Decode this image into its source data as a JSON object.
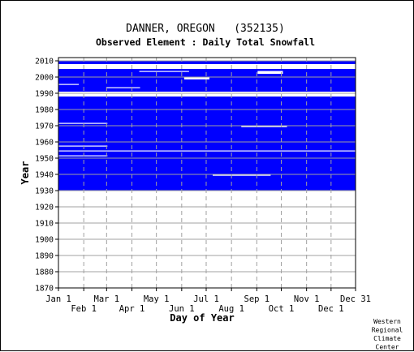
{
  "chart_data": {
    "type": "heatmap",
    "title": "DANNER, OREGON   (352135)",
    "subtitle": "Observed Element : Daily Total Snowfall",
    "xlabel": "Day of Year",
    "ylabel": "Year",
    "x_ticks_top_row": [
      "Jan 1",
      "Mar 1",
      "May 1",
      "Jul 1",
      "Sep 1",
      "Nov 1",
      "Dec 31"
    ],
    "x_ticks_bottom_row": [
      "Feb 1",
      "Apr 1",
      "Jun 1",
      "Aug 1",
      "Oct 1",
      "Dec 1"
    ],
    "y_ticks": [
      "2010",
      "2000",
      "1990",
      "1980",
      "1970",
      "1960",
      "1950",
      "1940",
      "1930",
      "1920",
      "1910",
      "1900",
      "1890",
      "1880",
      "1870"
    ],
    "ylim": [
      1870,
      2012
    ],
    "xlim_days": [
      1,
      365
    ],
    "grid": true,
    "series_color": "#0000ff",
    "grid_color": "#a0a0a0",
    "series": [
      {
        "observed_periods": [
          {
            "years": [
              1930,
              1987
            ],
            "days": [
              1,
              365
            ]
          },
          {
            "years": [
              1991,
              2004
            ],
            "days": [
              1,
              365
            ]
          },
          {
            "years": [
              2008,
              2009
            ],
            "days": [
              1,
              365
            ]
          }
        ],
        "missing_periods": [
          {
            "years": [
              1954,
              1954
            ],
            "days": [
              1,
              365
            ]
          },
          {
            "years": [
              1957,
              1957
            ],
            "days": [
              1,
              60
            ]
          },
          {
            "years": [
              1951,
              1951
            ],
            "days": [
              1,
              60
            ]
          },
          {
            "years": [
              1971,
              1971
            ],
            "days": [
              1,
              60
            ]
          },
          {
            "years": [
              1939,
              1939
            ],
            "days": [
              190,
              260
            ]
          },
          {
            "years": [
              1969,
              1969
            ],
            "days": [
              225,
              280
            ]
          },
          {
            "years": [
              2001,
              2003
            ],
            "days": [
              245,
              275
            ]
          },
          {
            "years": [
              1998,
              1999
            ],
            "days": [
              155,
              185
            ]
          },
          {
            "years": [
              1993,
              1993
            ],
            "days": [
              60,
              100
            ]
          },
          {
            "years": [
              1990,
              1990
            ],
            "days": [
              1,
              30
            ]
          },
          {
            "years": [
              1995,
              1995
            ],
            "days": [
              1,
              25
            ]
          },
          {
            "years": [
              2003,
              2003
            ],
            "days": [
              100,
              160
            ]
          }
        ]
      }
    ]
  },
  "credit": [
    "Western",
    "Regional",
    "Climate",
    "Center"
  ]
}
